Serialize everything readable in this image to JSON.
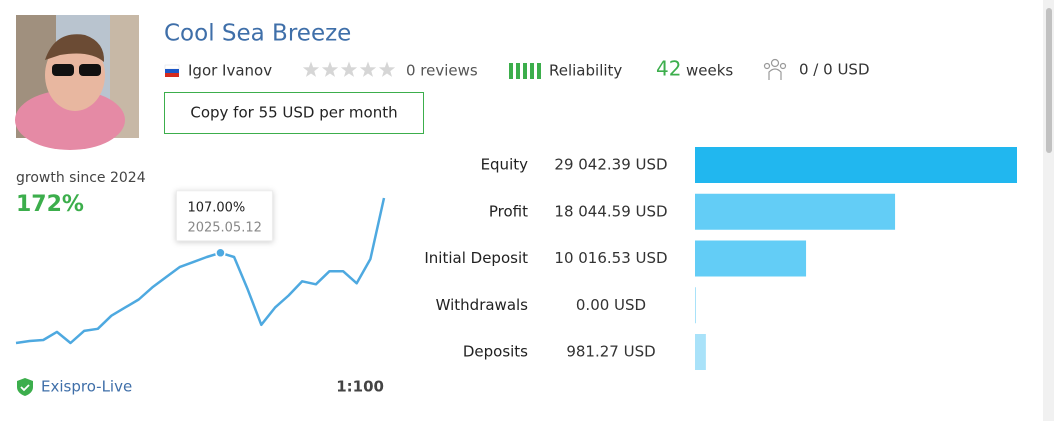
{
  "header": {
    "title": "Cool Sea Breeze",
    "author": "Igor Ivanov",
    "reviews": "0 reviews",
    "reliability": "Reliability",
    "weeks": "42",
    "weeks_label": "weeks",
    "subscribers": "0 / 0 USD",
    "copy_button": "Copy for 55 USD per month"
  },
  "growth": {
    "label": "growth since 2024",
    "total": "172%",
    "color": "#4ea9e0",
    "values": [
      0,
      2.4,
      3.6,
      13.2,
      0,
      14.4,
      16.8,
      32.4,
      42,
      51.6,
      66,
      78,
      90,
      96,
      102,
      107,
      102,
      63.6,
      21.6,
      42,
      56.4,
      73.2,
      69.6,
      85.2,
      85.2,
      70.8,
      99.6,
      172
    ],
    "highlight": {
      "value": 107,
      "label": "107.00%",
      "date": "2025.05.12"
    }
  },
  "account": {
    "broker": "Exispro-Live",
    "leverage": "1:100"
  },
  "stats": [
    {
      "label": "Equity",
      "value": 29042.39,
      "value_label": "29 042.39 USD",
      "color": "#21b7ef"
    },
    {
      "label": "Profit",
      "value": 18044.59,
      "value_label": "18 044.59 USD",
      "color": "#63cdf6"
    },
    {
      "label": "Initial Deposit",
      "value": 10016.53,
      "value_label": "10 016.53 USD",
      "color": "#63cdf6"
    },
    {
      "label": "Withdrawals",
      "value": 0,
      "value_label": "0.00 USD",
      "color": "#a9e2f9"
    },
    {
      "label": "Deposits",
      "value": 981.27,
      "value_label": "981.27 USD",
      "color": "#a9e2f9"
    }
  ]
}
